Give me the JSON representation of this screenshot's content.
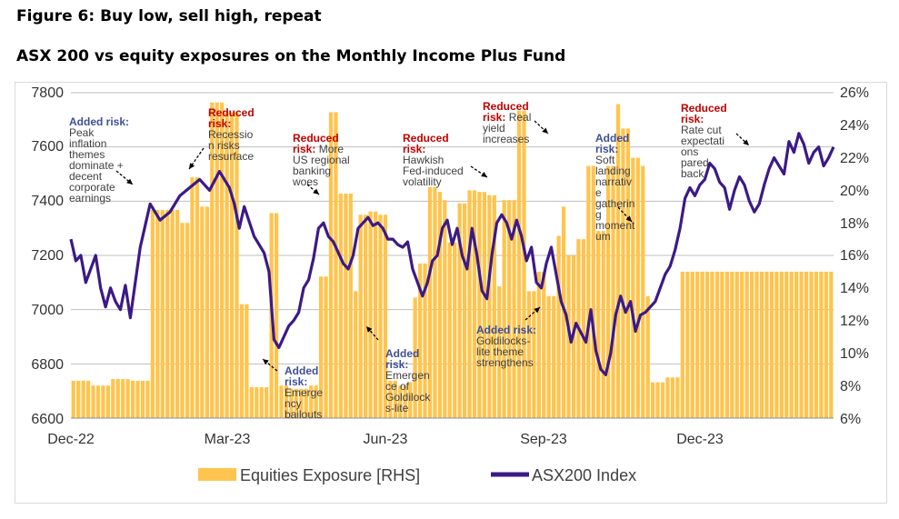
{
  "figure": {
    "title": "Figure 6: Buy low, sell high, repeat",
    "subtitle": "ASX 200 vs equity exposures on the Monthly Income Plus Fund"
  },
  "chart_data": {
    "type": "bar+line",
    "x_tick_labels": [
      "Dec-22",
      "Mar-23",
      "Jun-23",
      "Sep-23",
      "Dec-23"
    ],
    "y_left": {
      "min": 6600,
      "max": 7800,
      "step": 200,
      "ticks": [
        "6600",
        "6800",
        "7000",
        "7200",
        "7400",
        "7600",
        "7800"
      ]
    },
    "y_right": {
      "min": 6,
      "max": 26,
      "step": 2,
      "ticks": [
        "6%",
        "8%",
        "10%",
        "12%",
        "14%",
        "16%",
        "18%",
        "20%",
        "22%",
        "24%",
        "26%"
      ]
    },
    "grid": true,
    "legend_position": "bottom",
    "colors": {
      "bars": "#FFC44D",
      "line": "#3B1A87",
      "added": "#3E4F94",
      "reduced": "#C00000",
      "grid": "#bfbfbf"
    },
    "series": [
      {
        "name": "Equities Exposure [RHS]",
        "type": "bar",
        "axis": "right",
        "segments": [
          [
            0,
            8.3
          ],
          [
            4,
            8.0
          ],
          [
            8,
            8.4
          ],
          [
            12,
            8.3
          ],
          [
            16,
            18.8
          ],
          [
            22,
            18.0
          ],
          [
            24,
            20.8
          ],
          [
            26,
            19.0
          ],
          [
            28,
            25.4
          ],
          [
            31,
            24.8
          ],
          [
            34,
            13.0
          ],
          [
            36,
            7.9
          ],
          [
            40,
            18.6
          ],
          [
            42,
            8.0
          ],
          [
            44,
            7.8
          ],
          [
            48,
            8.0
          ],
          [
            50,
            14.7
          ],
          [
            52,
            24.8
          ],
          [
            54,
            19.8
          ],
          [
            57,
            13.8
          ],
          [
            58,
            18.5
          ],
          [
            60,
            18.7
          ],
          [
            62,
            18.5
          ],
          [
            64,
            8.3
          ],
          [
            66,
            8.0
          ],
          [
            68,
            8.2
          ],
          [
            69,
            13.4
          ],
          [
            70,
            15.5
          ],
          [
            72,
            20.2
          ],
          [
            74,
            19.9
          ],
          [
            75,
            19.4
          ],
          [
            76,
            16.8
          ],
          [
            78,
            19.2
          ],
          [
            80,
            20.0
          ],
          [
            82,
            19.9
          ],
          [
            84,
            19.7
          ],
          [
            86,
            14.1
          ],
          [
            87,
            19.4
          ],
          [
            90,
            24.9
          ],
          [
            92,
            13.8
          ],
          [
            94,
            15.0
          ],
          [
            96,
            13.5
          ],
          [
            98,
            17.2
          ],
          [
            99,
            19.0
          ],
          [
            100,
            16.0
          ],
          [
            102,
            17.0
          ],
          [
            104,
            21.5
          ],
          [
            106,
            17.5
          ],
          [
            108,
            21.5
          ],
          [
            110,
            25.3
          ],
          [
            111,
            23.8
          ],
          [
            113,
            22.0
          ],
          [
            115,
            21.5
          ],
          [
            116,
            13.5
          ],
          [
            117,
            8.2
          ],
          [
            120,
            8.5
          ],
          [
            123,
            15.0
          ]
        ]
      },
      {
        "name": "ASX200 Index",
        "type": "line",
        "axis": "left",
        "points": [
          [
            0,
            7260
          ],
          [
            1,
            7180
          ],
          [
            2,
            7200
          ],
          [
            3,
            7100
          ],
          [
            4,
            7150
          ],
          [
            5,
            7200
          ],
          [
            6,
            7080
          ],
          [
            7,
            7010
          ],
          [
            8,
            7080
          ],
          [
            9,
            7030
          ],
          [
            10,
            7000
          ],
          [
            11,
            7090
          ],
          [
            12,
            6970
          ],
          [
            13,
            7100
          ],
          [
            14,
            7230
          ],
          [
            16,
            7390
          ],
          [
            18,
            7330
          ],
          [
            20,
            7360
          ],
          [
            22,
            7420
          ],
          [
            24,
            7450
          ],
          [
            26,
            7480
          ],
          [
            28,
            7440
          ],
          [
            30,
            7510
          ],
          [
            32,
            7450
          ],
          [
            33,
            7390
          ],
          [
            34,
            7300
          ],
          [
            35,
            7380
          ],
          [
            37,
            7270
          ],
          [
            39,
            7210
          ],
          [
            40,
            7140
          ],
          [
            41,
            6890
          ],
          [
            42,
            6860
          ],
          [
            43,
            6900
          ],
          [
            44,
            6940
          ],
          [
            45,
            6960
          ],
          [
            46,
            6990
          ],
          [
            47,
            7080
          ],
          [
            48,
            7110
          ],
          [
            49,
            7190
          ],
          [
            50,
            7300
          ],
          [
            51,
            7320
          ],
          [
            52,
            7270
          ],
          [
            53,
            7250
          ],
          [
            55,
            7170
          ],
          [
            56,
            7150
          ],
          [
            57,
            7200
          ],
          [
            58,
            7300
          ],
          [
            60,
            7340
          ],
          [
            61,
            7310
          ],
          [
            62,
            7320
          ],
          [
            63,
            7300
          ],
          [
            64,
            7260
          ],
          [
            65,
            7260
          ],
          [
            66,
            7240
          ],
          [
            67,
            7230
          ],
          [
            68,
            7250
          ],
          [
            69,
            7150
          ],
          [
            71,
            7050
          ],
          [
            72,
            7100
          ],
          [
            73,
            7180
          ],
          [
            74,
            7200
          ],
          [
            75,
            7300
          ],
          [
            76,
            7330
          ],
          [
            77,
            7240
          ],
          [
            78,
            7300
          ],
          [
            79,
            7200
          ],
          [
            80,
            7150
          ],
          [
            81,
            7300
          ],
          [
            82,
            7200
          ],
          [
            83,
            7070
          ],
          [
            84,
            7040
          ],
          [
            85,
            7200
          ],
          [
            86,
            7320
          ],
          [
            87,
            7350
          ],
          [
            88,
            7320
          ],
          [
            89,
            7260
          ],
          [
            90,
            7330
          ],
          [
            91,
            7270
          ],
          [
            92,
            7180
          ],
          [
            93,
            7230
          ],
          [
            94,
            7100
          ],
          [
            95,
            7080
          ],
          [
            96,
            7170
          ],
          [
            97,
            7230
          ],
          [
            98,
            7130
          ],
          [
            99,
            7030
          ],
          [
            100,
            6980
          ],
          [
            101,
            6880
          ],
          [
            102,
            6950
          ],
          [
            104,
            6880
          ],
          [
            105,
            7000
          ],
          [
            106,
            6850
          ],
          [
            107,
            6780
          ],
          [
            108,
            6760
          ],
          [
            109,
            6840
          ],
          [
            110,
            6980
          ],
          [
            111,
            7050
          ],
          [
            112,
            6990
          ],
          [
            113,
            7030
          ],
          [
            114,
            6920
          ],
          [
            115,
            6980
          ],
          [
            116,
            6990
          ],
          [
            117,
            7010
          ],
          [
            118,
            7030
          ],
          [
            119,
            7080
          ],
          [
            120,
            7130
          ],
          [
            121,
            7160
          ],
          [
            122,
            7220
          ],
          [
            123,
            7300
          ],
          [
            124,
            7410
          ],
          [
            125,
            7450
          ],
          [
            126,
            7420
          ],
          [
            127,
            7460
          ],
          [
            128,
            7480
          ],
          [
            129,
            7540
          ],
          [
            130,
            7520
          ],
          [
            131,
            7470
          ],
          [
            132,
            7450
          ],
          [
            133,
            7370
          ],
          [
            134,
            7440
          ],
          [
            135,
            7490
          ],
          [
            136,
            7460
          ],
          [
            137,
            7400
          ],
          [
            138,
            7360
          ],
          [
            139,
            7390
          ],
          [
            140,
            7460
          ],
          [
            141,
            7520
          ],
          [
            142,
            7560
          ],
          [
            143,
            7530
          ],
          [
            144,
            7500
          ],
          [
            145,
            7620
          ],
          [
            146,
            7580
          ],
          [
            147,
            7650
          ],
          [
            148,
            7610
          ],
          [
            149,
            7540
          ],
          [
            150,
            7580
          ],
          [
            151,
            7600
          ],
          [
            152,
            7530
          ],
          [
            153,
            7560
          ],
          [
            154,
            7600
          ]
        ]
      }
    ],
    "annotations": [
      {
        "kind": "added",
        "lead": "Added risk",
        "lines": [
          "Peak",
          "inflation",
          "themes",
          "dominate +",
          "decent",
          "corporate",
          "earnings"
        ]
      },
      {
        "kind": "reduced",
        "lead": "Reduced",
        "lines": [
          "risk:",
          "Recessio",
          "n risks",
          "resurface"
        ]
      },
      {
        "kind": "added",
        "lead": "Added",
        "lines": [
          "risk:",
          "Emerge",
          "ncy",
          "bailouts"
        ]
      },
      {
        "kind": "reduced",
        "lead": "Reduced",
        "lines": [
          "risk: More",
          "US regional",
          "banking",
          "woes"
        ]
      },
      {
        "kind": "added",
        "lead": "Added",
        "lines": [
          "risk:",
          "Emergen",
          "ce of",
          "Goldilock",
          "s-lite"
        ]
      },
      {
        "kind": "reduced",
        "lead": "Reduced",
        "lines": [
          "risk:",
          "Hawkish",
          "Fed-induced",
          "volatility"
        ]
      },
      {
        "kind": "reduced",
        "lead": "Reduced",
        "lines": [
          "risk: Real",
          "yield",
          "increases"
        ]
      },
      {
        "kind": "added",
        "lead": "Added risk",
        "lines": [
          "Goldilocks-",
          "lite theme",
          "strengthens"
        ]
      },
      {
        "kind": "added",
        "lead": "Added",
        "lines": [
          "risk:",
          "Soft",
          "landing",
          "narrativ",
          "e",
          "gatherin",
          "g",
          "moment",
          "um"
        ]
      },
      {
        "kind": "reduced",
        "lead": "Reduced",
        "lines": [
          "risk:",
          "Rate cut",
          "expectati",
          "ons",
          "pared",
          "back"
        ]
      }
    ]
  }
}
